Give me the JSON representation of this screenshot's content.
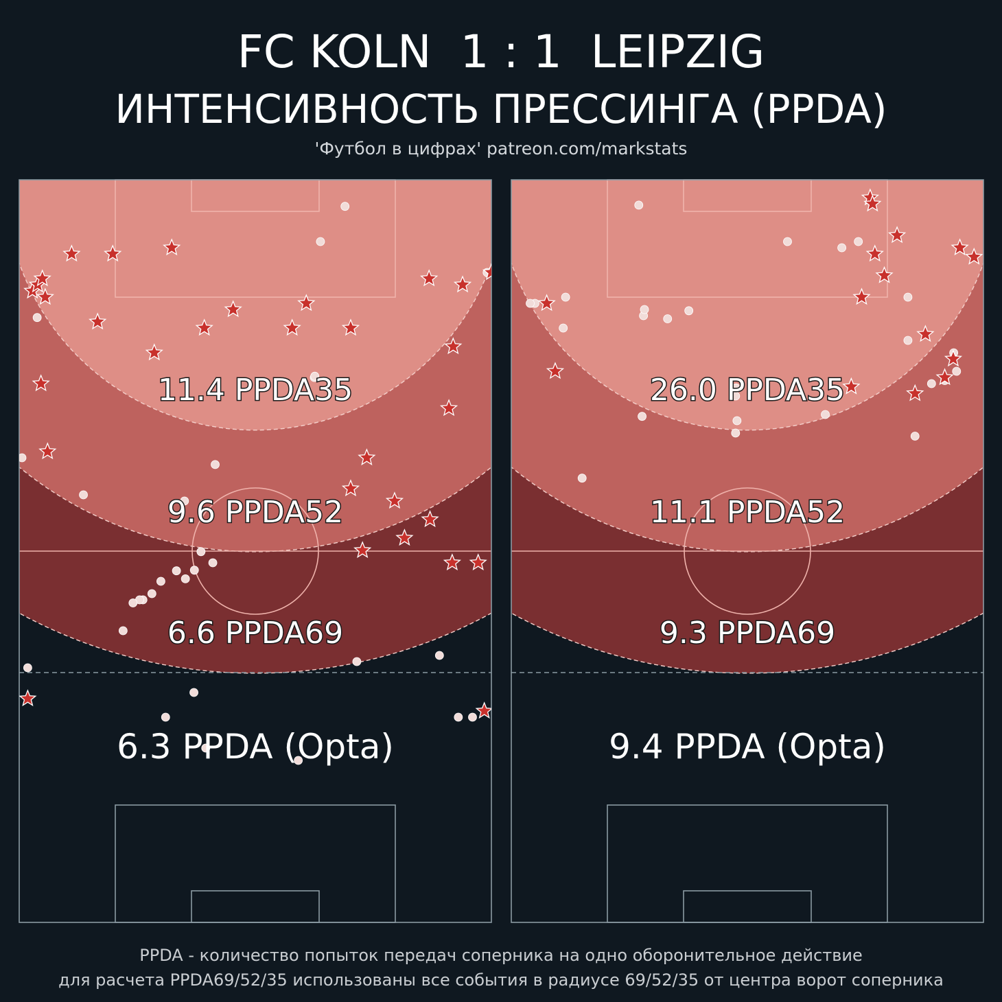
{
  "header": {
    "title": "FC KOLN  1 : 1  LEIPZIG",
    "subtitle": "ИНТЕНСИВНОСТЬ ПРЕССИНГА (PPDA)",
    "credit": "'Футбол в цифрах' patreon.com/markstats"
  },
  "footer": {
    "line1": "PPDA - количество попыток передач соперника на одно оборонительное действие",
    "line2": "для расчета PPDA69/52/35 использованы все события в радиусе 69/52/35 от центра ворот соперника"
  },
  "colors": {
    "background": "#0f1820",
    "zone35": "#de8e86",
    "zone52": "#be625e",
    "zone69": "#7a2f31",
    "star": "#c8312c",
    "dot": "#f1dcd9"
  },
  "chart_data": [
    {
      "type": "scatter",
      "team": "FC KOLN",
      "zones": [
        {
          "radius": 35,
          "label": "11.4 PPDA35"
        },
        {
          "radius": 52,
          "label": "9.6 PPDA52"
        },
        {
          "radius": 69,
          "label": "6.6 PPDA69"
        }
      ],
      "opta_label": "6.3 PPDA (Opta)",
      "dots": [
        [
          45,
          0.58
        ],
        [
          15,
          99.1
        ],
        [
          32,
          62.5
        ],
        [
          94,
          59.1
        ],
        [
          79,
          1.8
        ],
        [
          10,
          63.8
        ],
        [
          4.3,
          69
        ],
        [
          22.3,
          3.8
        ],
        [
          51,
          13.6
        ],
        [
          62,
          41
        ],
        [
          31.8,
          62.6
        ],
        [
          46.1,
          41.5
        ],
        [
          60.2,
          38.5
        ],
        [
          63.2,
          37.1
        ],
        [
          64.6,
          35.2
        ],
        [
          63.3,
          33.3
        ],
        [
          52,
          35
        ],
        [
          65,
          30
        ],
        [
          67,
          28.1
        ],
        [
          68,
          26.2
        ],
        [
          68,
          25.5
        ],
        [
          68.5,
          24.1
        ],
        [
          73,
          22
        ],
        [
          77,
          89
        ],
        [
          78,
          71.5
        ],
        [
          83,
          37
        ],
        [
          87,
          31
        ],
        [
          87,
          93
        ],
        [
          87,
          96
        ],
        [
          92,
          39.5
        ]
      ],
      "stars": [
        [
          84,
          1.8
        ],
        [
          86,
          98.5
        ],
        [
          55,
          87
        ],
        [
          62,
          91.7
        ],
        [
          62,
          97.2
        ],
        [
          60,
          72.7
        ],
        [
          58,
          81.6
        ],
        [
          50,
          70.2
        ],
        [
          52,
          79.5
        ],
        [
          45,
          73.6
        ],
        [
          44,
          6
        ],
        [
          37,
          91
        ],
        [
          33,
          4.6
        ],
        [
          28,
          28.6
        ],
        [
          27,
          91.9
        ],
        [
          24,
          57.8
        ],
        [
          24,
          39.2
        ],
        [
          24,
          70.2
        ],
        [
          23,
          16.6
        ],
        [
          21,
          45.3
        ],
        [
          20,
          60.8
        ],
        [
          19,
          5.5
        ],
        [
          18,
          2.8
        ],
        [
          17,
          93.9
        ],
        [
          17,
          3.9
        ],
        [
          16,
          86.8
        ],
        [
          16,
          4.9
        ],
        [
          15,
          100
        ],
        [
          12,
          11.1
        ],
        [
          12,
          19.8
        ],
        [
          11,
          32.3
        ]
      ]
    },
    {
      "type": "scatter",
      "team": "LEIPZIG",
      "zones": [
        {
          "radius": 35,
          "label": "26.0 PPDA35"
        },
        {
          "radius": 52,
          "label": "11.1 PPDA52"
        },
        {
          "radius": 69,
          "label": "9.3 PPDA69"
        }
      ],
      "opta_label": "9.4 PPDA (Opta)",
      "dots": [
        [
          41,
          47.5
        ],
        [
          4.1,
          27
        ],
        [
          11,
          70
        ],
        [
          20,
          5
        ],
        [
          20,
          4
        ],
        [
          19,
          11.5
        ],
        [
          24,
          11
        ],
        [
          22,
          28
        ],
        [
          21,
          28.2
        ],
        [
          22.5,
          33.1
        ],
        [
          21.2,
          37.6
        ],
        [
          33.7,
          47.6
        ],
        [
          35,
          47.5
        ],
        [
          39,
          47.8
        ],
        [
          38.3,
          27.7
        ],
        [
          48.3,
          15
        ],
        [
          38,
          66.5
        ],
        [
          41.5,
          85.5
        ],
        [
          33,
          89
        ],
        [
          32.5,
          91.8
        ],
        [
          31,
          94.3
        ],
        [
          28,
          93.7
        ],
        [
          26,
          84
        ],
        [
          19,
          84
        ],
        [
          10,
          73.5
        ],
        [
          10,
          58.5
        ]
      ],
      "stars": [
        [
          2.9,
          76
        ],
        [
          3.9,
          76.5
        ],
        [
          12,
          77
        ],
        [
          15.5,
          79
        ],
        [
          12.5,
          98
        ],
        [
          25,
          87.7
        ],
        [
          19,
          74.2
        ],
        [
          20,
          7.5
        ],
        [
          11,
          95
        ],
        [
          29,
          93.6
        ],
        [
          32,
          91.8
        ],
        [
          34.6,
          85.5
        ],
        [
          33.5,
          72
        ],
        [
          31,
          9.3
        ],
        [
          9,
          81.7
        ]
      ]
    }
  ]
}
